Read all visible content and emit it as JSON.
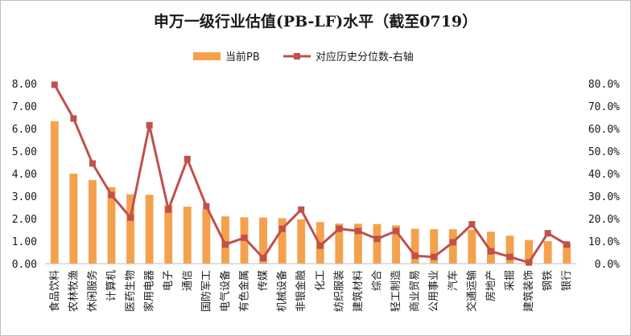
{
  "chart_data": {
    "type": "bar",
    "title": "申万一级行业估值(PB-LF)水平（截至0719）",
    "categories": [
      "食品饮料",
      "农林牧渔",
      "休闲服务",
      "计算机",
      "医药生物",
      "家用电器",
      "电子",
      "通信",
      "国防军工",
      "电气设备",
      "有色金属",
      "传媒",
      "机械设备",
      "非银金融",
      "化工",
      "纺织服装",
      "建筑材料",
      "综合",
      "轻工制造",
      "商业贸易",
      "公用事业",
      "汽车",
      "交通运输",
      "房地产",
      "采掘",
      "建筑装饰",
      "钢铁",
      "银行"
    ],
    "series": [
      {
        "name": "当前PB",
        "type": "bar",
        "axis": "left",
        "color": "#f4a14d",
        "values": [
          6.33,
          4.0,
          3.72,
          3.4,
          3.08,
          3.06,
          2.6,
          2.53,
          2.4,
          2.1,
          2.06,
          2.05,
          2.02,
          1.97,
          1.85,
          1.78,
          1.77,
          1.76,
          1.7,
          1.55,
          1.53,
          1.53,
          1.5,
          1.42,
          1.24,
          1.05,
          1.0,
          0.92
        ]
      },
      {
        "name": "对应历史分位数-右轴",
        "type": "line",
        "axis": "right",
        "color": "#c0504d",
        "values": [
          79.5,
          64.5,
          44.5,
          30.5,
          20.5,
          61.5,
          24.0,
          46.5,
          25.5,
          8.5,
          11.5,
          2.5,
          15.5,
          24.0,
          8.0,
          15.5,
          14.5,
          11.0,
          14.5,
          3.5,
          3.0,
          9.5,
          17.5,
          5.5,
          3.0,
          0.5,
          13.5,
          8.5
        ]
      }
    ],
    "left_axis": {
      "min": 0,
      "max": 8,
      "step": 1,
      "ticks": [
        "0.00",
        "1.00",
        "2.00",
        "3.00",
        "4.00",
        "5.00",
        "6.00",
        "7.00",
        "8.00"
      ]
    },
    "right_axis": {
      "min": 0,
      "max": 80,
      "step": 10,
      "ticks": [
        "0.0%",
        "10.0%",
        "20.0%",
        "30.0%",
        "40.0%",
        "50.0%",
        "60.0%",
        "70.0%",
        "80.0%"
      ]
    },
    "legend_position": "top-center",
    "grid": false
  }
}
